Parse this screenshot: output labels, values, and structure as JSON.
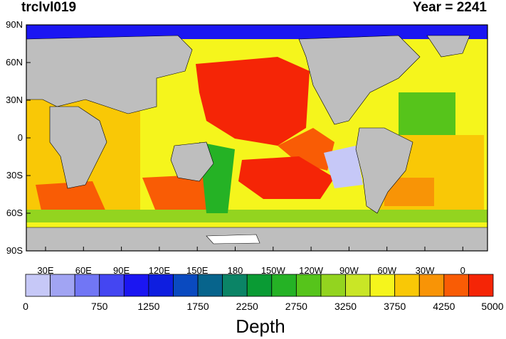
{
  "title_left": "trclvl019",
  "title_right": "Year = 2241",
  "lat_labels": [
    "90N",
    "60N",
    "30N",
    "0",
    "30S",
    "60S",
    "90S"
  ],
  "lon_labels": [
    "30E",
    "60E",
    "90E",
    "120E",
    "150E",
    "180",
    "150W",
    "120W",
    "90W",
    "60W",
    "30W",
    "0"
  ],
  "colorbar": {
    "title": "Depth",
    "tick_labels": [
      "0",
      "750",
      "1250",
      "1750",
      "2250",
      "2750",
      "3250",
      "3750",
      "4250",
      "5000"
    ],
    "colors": [
      "#c6c8f7",
      "#a1a4f3",
      "#7176f5",
      "#4446f2",
      "#1b16f2",
      "#0e1ee0",
      "#0a4ac0",
      "#07648c",
      "#0b8466",
      "#0a9b34",
      "#25b225",
      "#56c41b",
      "#93d41f",
      "#c9e626",
      "#f5f51c",
      "#f9c806",
      "#f89406",
      "#f95c05",
      "#f52506"
    ]
  },
  "colors": {
    "land": "#bebebe",
    "ice": "#ffffff"
  }
}
